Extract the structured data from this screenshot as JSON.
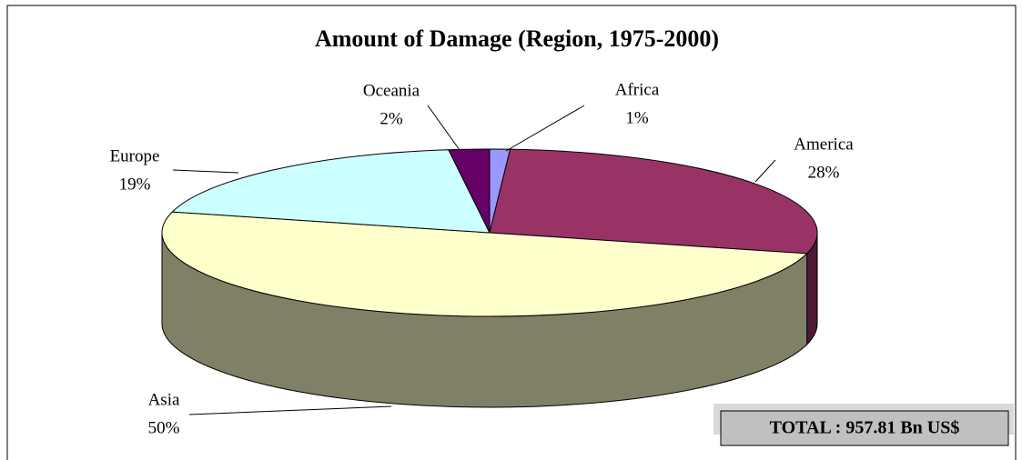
{
  "chart_data": {
    "type": "pie",
    "title": "Amount of Damage (Region, 1975-2000)",
    "categories": [
      "Africa",
      "America",
      "Asia",
      "Europe",
      "Oceania"
    ],
    "values": [
      1,
      28,
      50,
      19,
      2
    ],
    "value_labels": [
      "1%",
      "28%",
      "50%",
      "19%",
      "2%"
    ],
    "colors": [
      "#9999ff",
      "#993366",
      "#ffffcc",
      "#ccffff",
      "#660066"
    ],
    "annotation": "TOTAL : 957.81 Bn US$"
  }
}
